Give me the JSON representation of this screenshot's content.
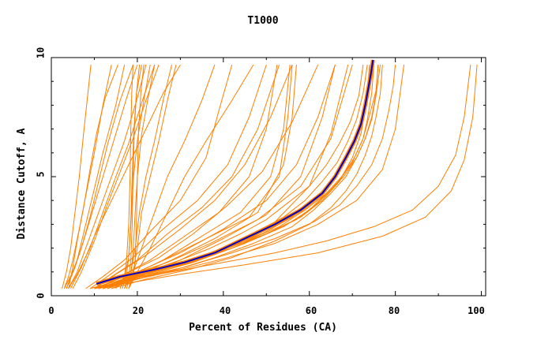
{
  "chart_data": {
    "type": "line",
    "title": "T1000",
    "xlabel": "Percent of Residues (CA)",
    "ylabel": "Distance Cutoff, A",
    "xlim": [
      0,
      101
    ],
    "ylim": [
      0,
      10
    ],
    "x_ticks": [
      "0",
      "20",
      "40",
      "60",
      "80",
      "100"
    ],
    "y_ticks": [
      "0",
      "5",
      "10"
    ],
    "grid": false,
    "legend": "none",
    "colors": {
      "models": "#ff7f00",
      "highlight": "#0000cc",
      "axes": "#000000"
    },
    "highlight_series": {
      "x": [
        10.5,
        16,
        24,
        31,
        38,
        45,
        52,
        58,
        63,
        66,
        68.5,
        70.5,
        72,
        73,
        73.8,
        74.4,
        74.8
      ],
      "y": [
        0.5,
        0.8,
        1.1,
        1.4,
        1.8,
        2.4,
        3.0,
        3.6,
        4.3,
        5.0,
        5.8,
        6.5,
        7.2,
        8.0,
        8.8,
        9.4,
        9.9
      ]
    },
    "model_series": [
      {
        "x": [
          2.5,
          3.5,
          4.5,
          5.5,
          6.5,
          7.5,
          8.5,
          9.2
        ],
        "y": [
          0.3,
          1.0,
          2.0,
          3.5,
          5.0,
          6.8,
          8.5,
          9.7
        ]
      },
      {
        "x": [
          3,
          4,
          5,
          6.5,
          8,
          10,
          12,
          14
        ],
        "y": [
          0.3,
          0.8,
          1.5,
          2.8,
          4.2,
          6.0,
          8.0,
          9.7
        ]
      },
      {
        "x": [
          3.5,
          4.5,
          6,
          8,
          10,
          12,
          15,
          17
        ],
        "y": [
          0.3,
          0.8,
          1.5,
          3.0,
          4.5,
          6.0,
          8.0,
          9.7
        ]
      },
      {
        "x": [
          3,
          5,
          7,
          9,
          11,
          13,
          16,
          19
        ],
        "y": [
          0.3,
          1.0,
          2.0,
          3.3,
          4.8,
          6.3,
          8.2,
          9.7
        ]
      },
      {
        "x": [
          4,
          6,
          8,
          11,
          14,
          17,
          20,
          22
        ],
        "y": [
          0.3,
          1.0,
          2.0,
          3.5,
          5.0,
          6.5,
          8.3,
          9.7
        ]
      },
      {
        "x": [
          4,
          6,
          9,
          12,
          15,
          18,
          21,
          24
        ],
        "y": [
          0.3,
          0.9,
          2.0,
          3.5,
          5.0,
          6.4,
          8.1,
          9.7
        ]
      },
      {
        "x": [
          3.5,
          5.5,
          7.5,
          10,
          12.5,
          15,
          17.5,
          20
        ],
        "y": [
          0.3,
          1.2,
          2.3,
          3.8,
          5.3,
          6.8,
          8.3,
          9.7
        ]
      },
      {
        "x": [
          5,
          7,
          10,
          13,
          16,
          19,
          22,
          25
        ],
        "y": [
          0.3,
          1.0,
          2.3,
          3.8,
          5.2,
          6.6,
          8.2,
          9.7
        ]
      },
      {
        "x": [
          4.5,
          7,
          10,
          14,
          18,
          22,
          26,
          30
        ],
        "y": [
          0.3,
          1.2,
          2.5,
          4.0,
          5.5,
          7.0,
          8.5,
          9.7
        ]
      },
      {
        "x": [
          4,
          5,
          6,
          7.5,
          9,
          10.5,
          12.5,
          15.5
        ],
        "y": [
          0.3,
          1.2,
          2.3,
          3.7,
          5.3,
          6.8,
          8.3,
          9.7
        ]
      },
      {
        "x": [
          16,
          17,
          17.5,
          18,
          18.3,
          18.5,
          18.7,
          19
        ],
        "y": [
          0.3,
          0.8,
          1.5,
          3.0,
          5.0,
          7.0,
          8.5,
          9.7
        ]
      },
      {
        "x": [
          17,
          18,
          18.5,
          18.8,
          19,
          19.3,
          19.8,
          20.5
        ],
        "y": [
          0.3,
          0.8,
          1.5,
          3.0,
          5.0,
          7.0,
          8.5,
          9.7
        ]
      },
      {
        "x": [
          16.5,
          17.5,
          18,
          18.5,
          18.8,
          19.2,
          19.8,
          21
        ],
        "y": [
          0.3,
          0.9,
          1.6,
          3.2,
          5.0,
          7.0,
          8.5,
          9.7
        ]
      },
      {
        "x": [
          18,
          19,
          19.5,
          19.8,
          20,
          20.3,
          20.8,
          21.5
        ],
        "y": [
          0.3,
          0.8,
          1.5,
          3.0,
          5.0,
          7.0,
          8.5,
          9.7
        ]
      },
      {
        "x": [
          17.5,
          18.5,
          19,
          19.5,
          20,
          21,
          22.5,
          24
        ],
        "y": [
          0.3,
          0.9,
          1.8,
          3.5,
          5.0,
          6.8,
          8.3,
          9.7
        ]
      },
      {
        "x": [
          15,
          17,
          18,
          18.5,
          19,
          20,
          21.5,
          23
        ],
        "y": [
          0.3,
          0.8,
          1.6,
          3.0,
          4.8,
          6.5,
          8.2,
          9.7
        ]
      },
      {
        "x": [
          17,
          18.5,
          19.5,
          20.5,
          22,
          24,
          26,
          28
        ],
        "y": [
          0.3,
          1.0,
          2.0,
          3.5,
          5.0,
          6.5,
          8.2,
          9.7
        ]
      },
      {
        "x": [
          18,
          19,
          20,
          21,
          23,
          25,
          27,
          29
        ],
        "y": [
          0.3,
          1.0,
          2.0,
          3.5,
          5.0,
          6.5,
          8.2,
          9.7
        ]
      },
      {
        "x": [
          17,
          19,
          21,
          24,
          27,
          31,
          35,
          38
        ],
        "y": [
          0.3,
          1.0,
          2.0,
          3.5,
          5.0,
          6.5,
          8.2,
          9.7
        ]
      },
      {
        "x": [
          18,
          20,
          23,
          27,
          31,
          36,
          42,
          47
        ],
        "y": [
          0.3,
          1.0,
          2.0,
          3.5,
          5.0,
          6.5,
          8.2,
          9.7
        ]
      },
      {
        "x": [
          8,
          12,
          17,
          23,
          30,
          36,
          39,
          42
        ],
        "y": [
          0.3,
          0.8,
          1.5,
          2.7,
          4.0,
          5.8,
          7.8,
          9.7
        ]
      },
      {
        "x": [
          10,
          14,
          20,
          27,
          35,
          42,
          48,
          53
        ],
        "y": [
          0.3,
          0.8,
          1.5,
          2.6,
          3.7,
          5.0,
          7.0,
          9.7
        ]
      },
      {
        "x": [
          11,
          16,
          23,
          31,
          39,
          46,
          50,
          52.5
        ],
        "y": [
          0.3,
          0.8,
          1.5,
          2.5,
          3.5,
          5.0,
          7.0,
          9.7
        ]
      },
      {
        "x": [
          9,
          13,
          19,
          26,
          34,
          41,
          46,
          50
        ],
        "y": [
          0.3,
          0.8,
          1.6,
          2.8,
          4.0,
          5.5,
          7.5,
          9.7
        ]
      },
      {
        "x": [
          12,
          18,
          26,
          35,
          44,
          51,
          54,
          55.5
        ],
        "y": [
          0.3,
          0.8,
          1.5,
          2.5,
          3.5,
          5.0,
          7.0,
          9.7
        ]
      },
      {
        "x": [
          12,
          18,
          26,
          36,
          46,
          53,
          55,
          56
        ],
        "y": [
          0.3,
          0.8,
          1.5,
          2.4,
          3.3,
          5.0,
          7.5,
          9.7
        ]
      },
      {
        "x": [
          13,
          19,
          28,
          38,
          48,
          54,
          56,
          57
        ],
        "y": [
          0.3,
          0.8,
          1.5,
          2.4,
          3.5,
          5.5,
          7.5,
          9.7
        ]
      },
      {
        "x": [
          10,
          15,
          22,
          30,
          38,
          45,
          51,
          56
        ],
        "y": [
          0.3,
          0.9,
          1.7,
          2.8,
          4.0,
          5.5,
          7.5,
          9.7
        ]
      },
      {
        "x": [
          11,
          17,
          25,
          33,
          41,
          49,
          56,
          62
        ],
        "y": [
          0.3,
          0.9,
          1.6,
          2.6,
          3.8,
          5.2,
          7.3,
          9.7
        ]
      },
      {
        "x": [
          12,
          20,
          30,
          40,
          50,
          57,
          62,
          66
        ],
        "y": [
          0.3,
          1.0,
          1.8,
          2.8,
          4.0,
          5.5,
          7.5,
          9.7
        ]
      },
      {
        "x": [
          14,
          22,
          30,
          40,
          50,
          58,
          63,
          66
        ],
        "y": [
          0.3,
          0.9,
          1.5,
          2.4,
          3.4,
          5.0,
          7.5,
          9.7
        ]
      },
      {
        "x": [
          12,
          20,
          30,
          41,
          52,
          60,
          65,
          69
        ],
        "y": [
          0.3,
          0.8,
          1.3,
          2.1,
          3.1,
          4.6,
          6.8,
          9.7
        ]
      },
      {
        "x": [
          10,
          17,
          27,
          37,
          48,
          58,
          65,
          70
        ],
        "y": [
          0.3,
          0.8,
          1.4,
          2.2,
          3.2,
          4.6,
          6.6,
          9.7
        ]
      },
      {
        "x": [
          11,
          16,
          24,
          32,
          41,
          50,
          58,
          63,
          67,
          70,
          72,
          73,
          74,
          75
        ],
        "y": [
          0.3,
          0.6,
          1.0,
          1.4,
          2.0,
          2.6,
          3.3,
          4.0,
          4.8,
          5.8,
          6.8,
          7.8,
          8.8,
          9.7
        ]
      },
      {
        "x": [
          11,
          17,
          25,
          33,
          42,
          50,
          57,
          62,
          66,
          70,
          72.5,
          74,
          75.5,
          76
        ],
        "y": [
          0.3,
          0.6,
          1.0,
          1.4,
          2.0,
          2.6,
          3.2,
          3.9,
          4.6,
          5.6,
          6.6,
          7.6,
          8.6,
          9.7
        ]
      },
      {
        "x": [
          12,
          19,
          27,
          36,
          45,
          54,
          60,
          64,
          67.5,
          70.5,
          72.5,
          73.5,
          74.5,
          75
        ],
        "y": [
          0.3,
          0.7,
          1.1,
          1.6,
          2.2,
          2.9,
          3.6,
          4.3,
          5.0,
          5.8,
          6.6,
          7.4,
          8.5,
          9.7
        ]
      },
      {
        "x": [
          13,
          20,
          29,
          38,
          47,
          56,
          61,
          65,
          68.5,
          71,
          73,
          74.5,
          75.5,
          76
        ],
        "y": [
          0.3,
          0.7,
          1.1,
          1.6,
          2.2,
          2.9,
          3.6,
          4.3,
          5.0,
          5.8,
          6.6,
          7.5,
          8.5,
          9.7
        ]
      },
      {
        "x": [
          12,
          18,
          26,
          35,
          44,
          53,
          59,
          64,
          68,
          71,
          73,
          74.5,
          75.5,
          76.5
        ],
        "y": [
          0.3,
          0.7,
          1.1,
          1.6,
          2.2,
          2.9,
          3.6,
          4.3,
          5.0,
          5.8,
          6.6,
          7.4,
          8.4,
          9.7
        ]
      },
      {
        "x": [
          10,
          16,
          23,
          31,
          40,
          49,
          56,
          61,
          65,
          68.5,
          71,
          72.5,
          73.5,
          74
        ],
        "y": [
          0.3,
          0.6,
          1.0,
          1.4,
          2.0,
          2.6,
          3.3,
          4.0,
          4.8,
          5.7,
          6.6,
          7.6,
          8.6,
          9.7
        ]
      },
      {
        "x": [
          14,
          22,
          32,
          42,
          52,
          60,
          65,
          68.5,
          71,
          73,
          74.5,
          75.5,
          76.5,
          77
        ],
        "y": [
          0.3,
          0.7,
          1.1,
          1.6,
          2.3,
          3.0,
          3.7,
          4.4,
          5.1,
          5.9,
          6.7,
          7.5,
          8.5,
          9.7
        ]
      },
      {
        "x": [
          13,
          21,
          31,
          42,
          52,
          61,
          67,
          71,
          74.5,
          77,
          78.5,
          79.5,
          80
        ],
        "y": [
          0.3,
          0.8,
          1.2,
          1.8,
          2.4,
          3.1,
          3.8,
          4.6,
          5.5,
          6.6,
          7.8,
          8.8,
          9.7
        ]
      },
      {
        "x": [
          12,
          20,
          30,
          41,
          52,
          62,
          71,
          77,
          80,
          82
        ],
        "y": [
          0.3,
          0.7,
          1.1,
          1.6,
          2.2,
          3.0,
          4.0,
          5.3,
          7.0,
          9.7
        ]
      },
      {
        "x": [
          10,
          18,
          28,
          40,
          52,
          64,
          75,
          84,
          90,
          94,
          96,
          97.5
        ],
        "y": [
          0.3,
          0.7,
          1.0,
          1.4,
          1.8,
          2.3,
          2.9,
          3.6,
          4.6,
          5.9,
          7.5,
          9.7
        ]
      },
      {
        "x": [
          10,
          20,
          30,
          45,
          62,
          77,
          87,
          93,
          96,
          98,
          99
        ],
        "y": [
          0.3,
          0.6,
          0.9,
          1.3,
          1.8,
          2.5,
          3.3,
          4.4,
          5.7,
          7.5,
          9.7
        ]
      },
      {
        "x": [
          9,
          15,
          22,
          30,
          37,
          44,
          50,
          55,
          60,
          64,
          67,
          69.5,
          71.5,
          72.5
        ],
        "y": [
          0.3,
          0.6,
          1.0,
          1.5,
          2.0,
          2.6,
          3.2,
          3.9,
          4.6,
          5.5,
          6.4,
          7.3,
          8.4,
          9.7
        ]
      },
      {
        "x": [
          11,
          17,
          25,
          33,
          41,
          48,
          54,
          59,
          63,
          66.5,
          69,
          71,
          72.5,
          73.5
        ],
        "y": [
          0.3,
          0.7,
          1.1,
          1.5,
          2.1,
          2.7,
          3.3,
          4.0,
          4.8,
          5.6,
          6.5,
          7.4,
          8.5,
          9.7
        ]
      }
    ]
  }
}
